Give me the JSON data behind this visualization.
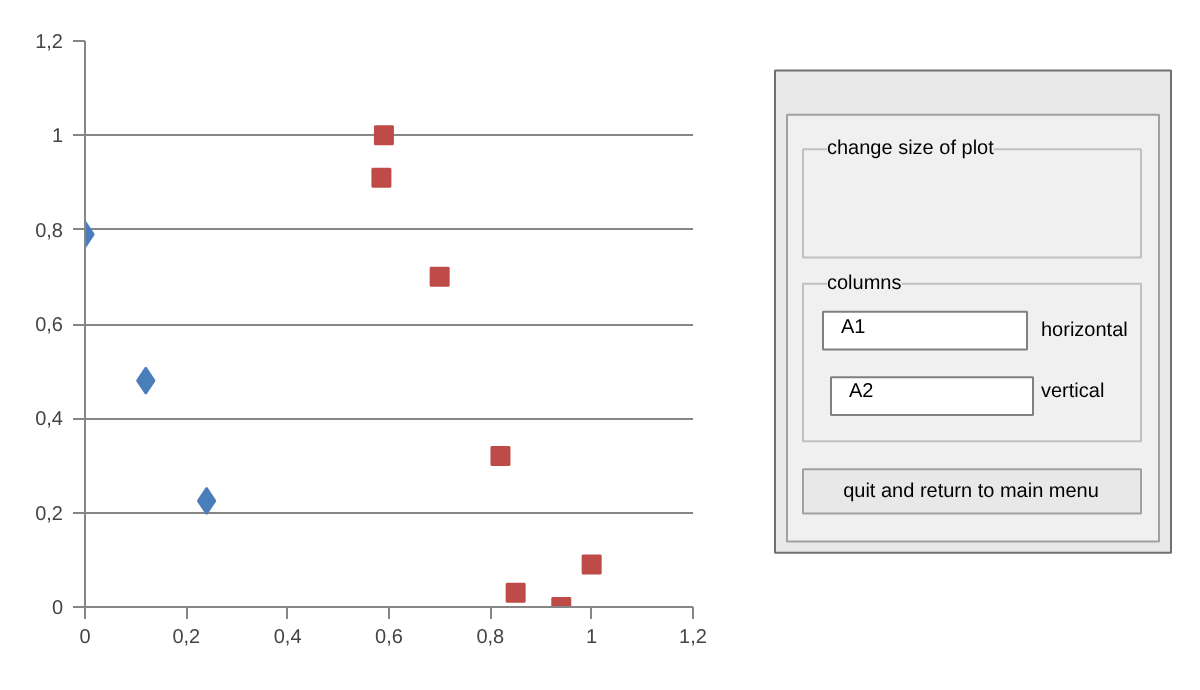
{
  "chart_data": [
    {
      "type": "scatter",
      "xlim": [
        0,
        1.2
      ],
      "ylim": [
        0,
        1.2
      ],
      "xticks": [
        0,
        {
          "value": 0.2,
          "label": "0,2"
        },
        {
          "value": 0.4,
          "label": "0,4"
        },
        {
          "value": 0.6,
          "label": "0,6"
        },
        {
          "value": 0.8,
          "label": "0,8"
        },
        1,
        {
          "value": 1.2,
          "label": "1,2"
        }
      ],
      "yticks": [
        0,
        {
          "value": 0.2,
          "label": "0,2"
        },
        {
          "value": 0.4,
          "label": "0,4"
        },
        {
          "value": 0.6,
          "label": "0,6"
        },
        {
          "value": 0.8,
          "label": "0,8"
        },
        1,
        {
          "value": 1.2,
          "label": "1,2"
        }
      ],
      "grid": "y",
      "series": [
        {
          "color": "#4a7ebb",
          "marker": "diamond",
          "x": [
            0,
            0.12,
            0.24
          ],
          "values": [
            0.79,
            0.48,
            0.225
          ]
        },
        {
          "color": "#be4b48",
          "marker": "square",
          "x": [
            0.59,
            0.585,
            0.7,
            0.82,
            0.85,
            0.94,
            1.0
          ],
          "values": [
            1.0,
            0.91,
            0.7,
            0.32,
            0.03,
            0.0,
            0.09
          ]
        }
      ]
    },
    {
      "type": "other",
      "annotations": [
        "change size of plot",
        "columns",
        "A1",
        "horizontal",
        "A2",
        "vertical",
        "quit and return to main menu"
      ]
    }
  ]
}
